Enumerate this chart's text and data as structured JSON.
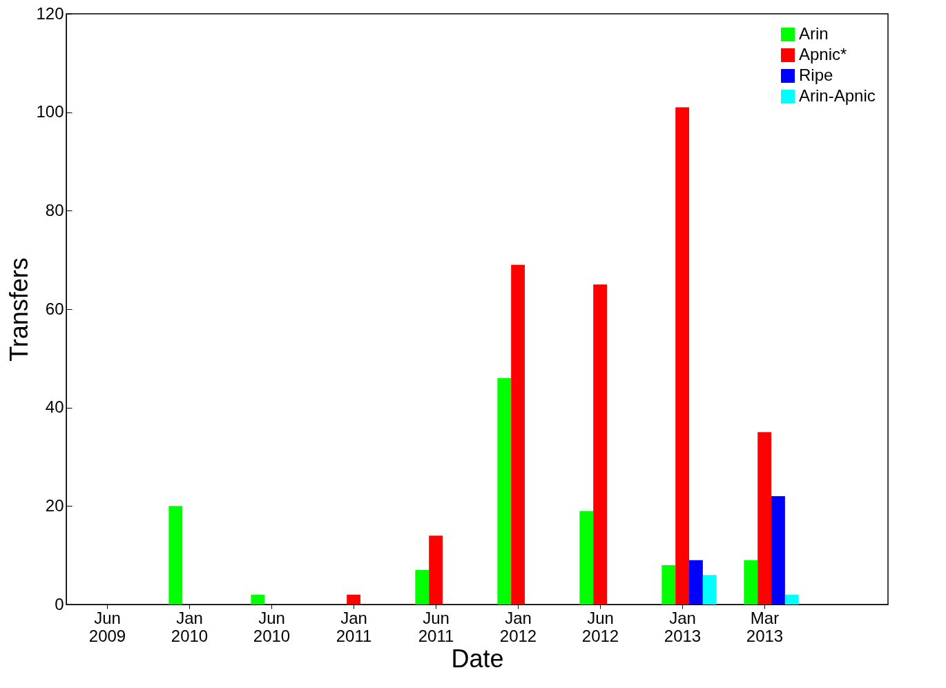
{
  "chart_data": {
    "type": "bar",
    "xlabel": "Date",
    "ylabel": "Transfers",
    "categories": [
      "Jun 2009",
      "Jan 2010",
      "Jun 2010",
      "Jan 2011",
      "Jun 2011",
      "Jan 2012",
      "Jun 2012",
      "Jan 2013",
      "Mar 2013"
    ],
    "series": [
      {
        "name": "Arin",
        "color": "#00ff00",
        "values": [
          null,
          20,
          2,
          null,
          7,
          46,
          19,
          8,
          9
        ]
      },
      {
        "name": "Apnic*",
        "color": "#ff0000",
        "values": [
          null,
          null,
          null,
          2,
          14,
          69,
          65,
          101,
          35
        ]
      },
      {
        "name": "Ripe",
        "color": "#0000ff",
        "values": [
          null,
          null,
          null,
          null,
          null,
          null,
          null,
          9,
          22
        ]
      },
      {
        "name": "Arin-Apnic",
        "color": "#00ffff",
        "values": [
          null,
          null,
          null,
          null,
          null,
          null,
          null,
          6,
          2
        ]
      }
    ],
    "ylim": [
      0,
      120
    ],
    "yticks": [
      0,
      20,
      40,
      60,
      80,
      100,
      120
    ],
    "grid": false,
    "legend": "top right"
  }
}
